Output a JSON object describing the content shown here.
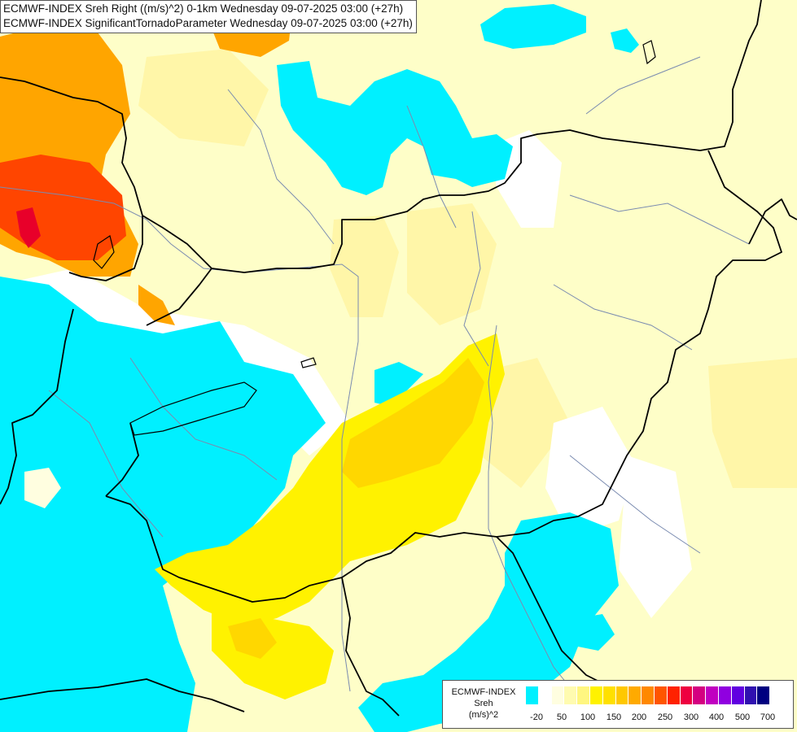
{
  "titles": [
    "ECMWF-INDEX Sreh Right ((m/s)^2) 0-1km Wednesday 09-07-2025 03:00 (+27h)",
    "ECMWF-INDEX SignificantTornadoParameter Wednesday 09-07-2025 03:00 (+27h)"
  ],
  "legend": {
    "model": "ECMWF-INDEX",
    "param": "Sreh",
    "unit": "(m/s)^2",
    "ticks": [
      "-20",
      "50",
      "100",
      "150",
      "200",
      "250",
      "300",
      "400",
      "500",
      "700"
    ],
    "colors": [
      "#00f0ff",
      "#ffffff",
      "#fffee0",
      "#fffbb0",
      "#fff680",
      "#fff200",
      "#ffe000",
      "#ffc800",
      "#ffaa00",
      "#ff8800",
      "#ff5500",
      "#ff2200",
      "#ee0040",
      "#d40080",
      "#c000c0",
      "#9000e0",
      "#6000e0",
      "#3010b0",
      "#000080"
    ]
  },
  "colors": {
    "cyan": "#00f0ff",
    "white": "#ffffff",
    "pale": "#fefec8",
    "light": "#fff6a8",
    "yellow": "#fff200",
    "gold": "#ffd700",
    "orange": "#ffa500",
    "red": "#ff4500",
    "darkred": "#e8002a",
    "border": "#000000",
    "river": "#7a8bb0"
  }
}
